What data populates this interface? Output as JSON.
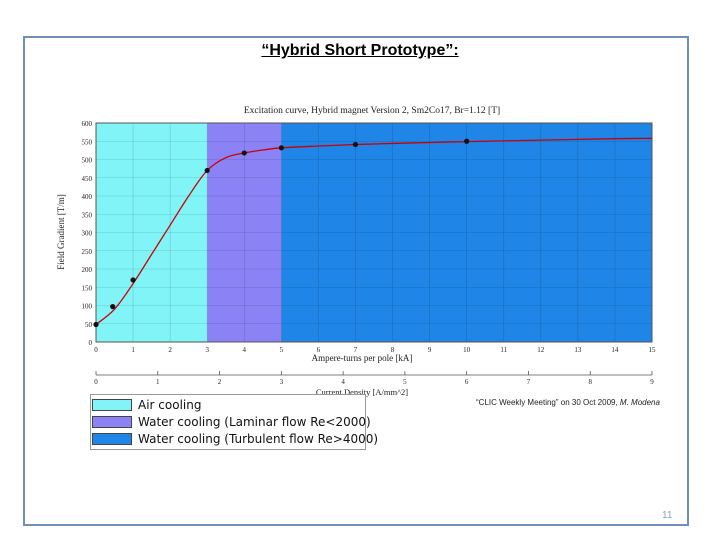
{
  "slide": {
    "title": "“Hybrid Short Prototype”:",
    "footnote_text": "“CLIC Weekly Meeting” on 30 Oct 2009, ",
    "footnote_author": "M. Modena",
    "page_number": "11"
  },
  "chart_data": {
    "type": "line",
    "title": "Excitation curve, Hybrid magnet Version 2, Sm2Co17, Br=1.12 [T]",
    "xlabel": "Ampere-turns per pole [kA]",
    "ylabel": "Field Gradient [T/m]",
    "x2label": "Current Density [A/mm^2]",
    "xlim": [
      0,
      15
    ],
    "ylim": [
      0,
      600
    ],
    "x_ticks": [
      "0",
      "1",
      "2",
      "3",
      "4",
      "5",
      "6",
      "7",
      "8",
      "9",
      "10",
      "11",
      "12",
      "13",
      "14",
      "15"
    ],
    "y_ticks": [
      "0",
      "50",
      "100",
      "150",
      "200",
      "250",
      "300",
      "350",
      "400",
      "450",
      "500",
      "550",
      "600"
    ],
    "x2_ticks": [
      "0",
      "1",
      "2",
      "3",
      "4",
      "5",
      "6",
      "7",
      "8",
      "9"
    ],
    "x2_range": [
      0,
      9
    ],
    "series": [
      {
        "curve_color": "#cc0000",
        "marker_color": "#111111",
        "x": [
          0,
          0.5,
          1.0,
          1.5,
          2.0,
          2.5,
          3.0,
          3.5,
          4.0,
          4.5,
          5.0,
          6.0,
          7.0,
          8.0,
          10.0,
          12.0,
          14.0,
          15.0
        ],
        "y": [
          48,
          90,
          160,
          240,
          320,
          400,
          470,
          505,
          518,
          526,
          532,
          537,
          541,
          544,
          549,
          553,
          557,
          558
        ]
      }
    ],
    "markers": {
      "x": [
        0,
        0.45,
        1.0,
        3.0,
        4.0,
        5.0,
        7.0,
        10.0
      ],
      "y": [
        48,
        97,
        170,
        470,
        518,
        532,
        541,
        550
      ]
    },
    "regions": [
      {
        "label": "Air cooling",
        "x_start": 0,
        "x_end": 3,
        "color": "#80f4f7"
      },
      {
        "label": "Water cooling (Laminar flow Re<2000)",
        "x_start": 3,
        "x_end": 5,
        "color": "#8b83f5"
      },
      {
        "label": "Water cooling (Turbulent flow Re>4000)",
        "x_start": 5,
        "x_end": 15,
        "color": "#1f85e6"
      }
    ],
    "grid": true
  }
}
